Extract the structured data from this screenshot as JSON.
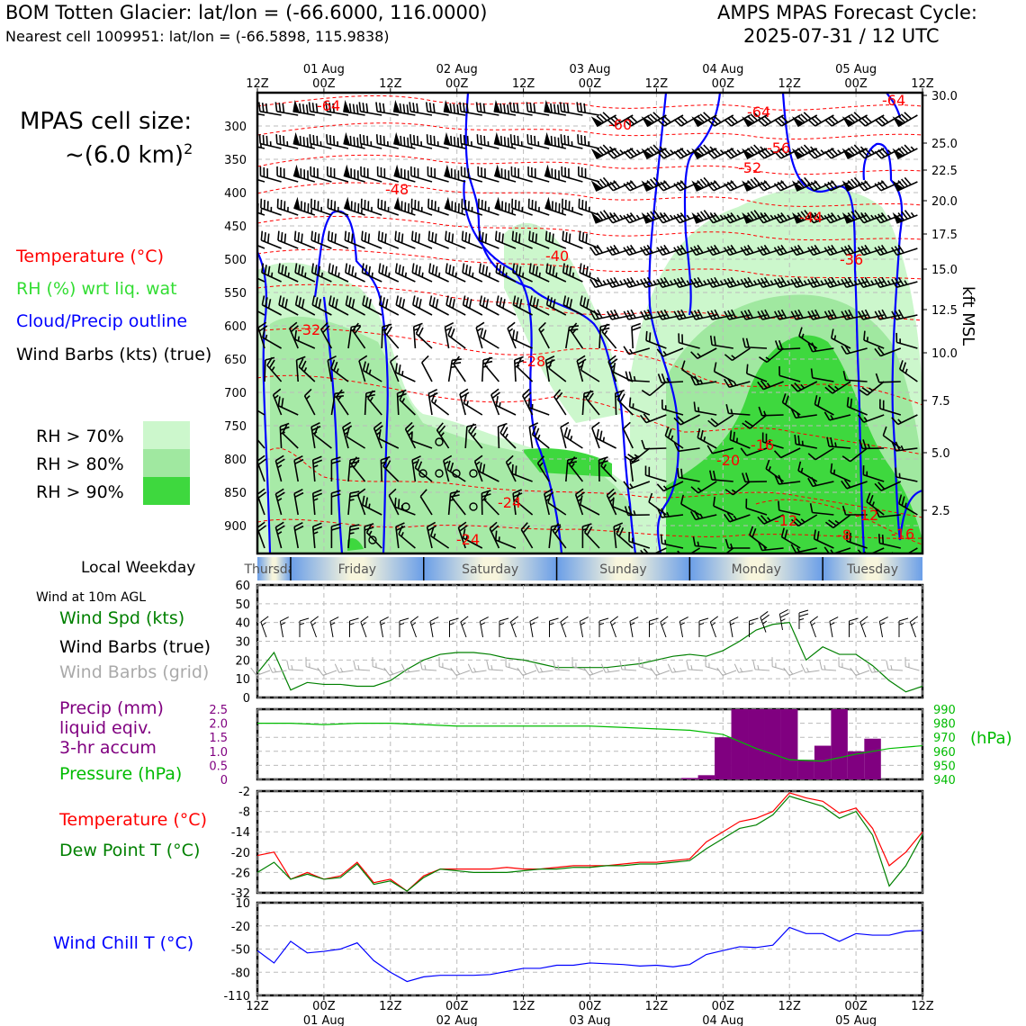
{
  "header": {
    "title_left": "BOM Totten Glacier: lat/lon = (-66.6000, 116.0000)",
    "subtitle_left": "Nearest cell 1009951: lat/lon = (-66.5898, 115.9838)",
    "title_right_1": "AMPS MPAS Forecast Cycle:",
    "title_right_2": "2025-07-31 / 12 UTC"
  },
  "left_panel": {
    "cell_size_line1": "MPAS cell size:",
    "cell_size_line2": "~(6.0 km)",
    "cell_size_sup": "2",
    "legend_temp": "Temperature (°C)",
    "legend_rh": "RH (%) wrt liq. wat",
    "legend_cloud": "Cloud/Precip outline",
    "legend_wind": "Wind Barbs (kts) (true)",
    "rh_70": "RH > 70%",
    "rh_80": "RH > 80%",
    "rh_90": "RH > 90%",
    "weekday_label": "Local Weekday",
    "wind10_title": "Wind at 10m AGL",
    "wind_spd": "Wind Spd (kts)",
    "wind_barbs_true": "Wind Barbs (true)",
    "wind_barbs_grid": "Wind Barbs (grid)",
    "precip_1": "Precip (mm)",
    "precip_2": "liquid eqiv.",
    "precip_3": "3-hr accum",
    "pressure": "Pressure (hPa)",
    "temp": "Temperature (°C)",
    "dewpt": "Dew Point T (°C)",
    "windchill": "Wind Chill T (°C)"
  },
  "colors": {
    "rh70": "#ccf7cc",
    "rh80": "#a0e8a0",
    "rh90": "#3ed83e",
    "temp": "#ff0000",
    "dew": "#008000",
    "cloud": "#0000ff",
    "precip": "#800080",
    "pressure": "#00bb00",
    "grid_barb": "#aaaaaa",
    "wind_spd": "#008000",
    "windchill": "#0000ff"
  },
  "time_axis": {
    "ticks": [
      "12Z",
      "00Z",
      "12Z",
      "00Z",
      "12Z",
      "00Z",
      "12Z",
      "00Z",
      "12Z",
      "00Z",
      "12Z"
    ],
    "dates": [
      "01 Aug",
      "02 Aug",
      "03 Aug",
      "04 Aug",
      "05 Aug"
    ]
  },
  "weekdays": [
    "Thursday",
    "Friday",
    "Saturday",
    "Sunday",
    "Monday",
    "Tuesday"
  ],
  "chart_data": [
    {
      "type": "heatmap",
      "name": "time-height cross section",
      "y_left_ticks": [
        "300",
        "350",
        "400",
        "450",
        "500",
        "550",
        "600",
        "650",
        "700",
        "750",
        "800",
        "850",
        "900"
      ],
      "y_right_label": "kft MSL",
      "y_right_ticks": [
        "30.0",
        "25.0",
        "22.5",
        "20.0",
        "17.5",
        "15.0",
        "12.5",
        "10.0",
        "7.5",
        "5.0",
        "2.5"
      ],
      "temp_contour_labels": [
        "-64",
        "-60",
        "-64",
        "-64",
        "-56",
        "-52",
        "-48",
        "-44",
        "-40",
        "-36",
        "-32",
        "-28",
        "-24",
        "-24",
        "-20",
        "-16",
        "-12",
        "-8",
        "-12",
        "-16"
      ]
    },
    {
      "type": "line",
      "name": "wind speed 10m",
      "yticks": [
        "0",
        "10",
        "20",
        "30",
        "40",
        "50",
        "60"
      ],
      "ylim": [
        0,
        60
      ],
      "x": [
        0,
        3,
        6,
        9,
        12,
        15,
        18,
        21,
        24,
        27,
        30,
        33,
        36,
        39,
        42,
        45,
        48,
        51,
        54,
        57,
        60,
        63,
        66,
        69,
        72,
        75,
        78,
        81,
        84,
        87,
        90,
        93,
        96,
        99,
        102,
        105,
        108,
        111,
        114,
        117,
        120
      ],
      "values": [
        13,
        24,
        4,
        8,
        7,
        7,
        6,
        6,
        9,
        15,
        20,
        23,
        24,
        24,
        23,
        21,
        20,
        18,
        16,
        16,
        16,
        16,
        17,
        18,
        20,
        22,
        23,
        22,
        25,
        30,
        36,
        39,
        40,
        20,
        27,
        23,
        23,
        17,
        9,
        3,
        6
      ]
    },
    {
      "type": "bar",
      "name": "precip and pressure",
      "precip_yticks": [
        "0",
        "0.5",
        "1.0",
        "1.5",
        "2.0",
        "2.5"
      ],
      "pressure_yticks": [
        "940",
        "950",
        "960",
        "970",
        "980",
        "990"
      ],
      "precip_ylim": [
        0,
        2.5
      ],
      "pressure_ylim": [
        940,
        990
      ],
      "precip_x": [
        78,
        81,
        84,
        87,
        90,
        93,
        96,
        99,
        102,
        105,
        108,
        111,
        114
      ],
      "precip_values": [
        0.05,
        0.15,
        1.5,
        2.5,
        2.5,
        2.5,
        2.5,
        0.7,
        1.2,
        2.5,
        1.0,
        1.45,
        0
      ],
      "pressure_x": [
        0,
        6,
        12,
        18,
        24,
        30,
        36,
        42,
        48,
        54,
        60,
        66,
        72,
        78,
        84,
        90,
        96,
        102,
        108,
        114,
        120
      ],
      "pressure_values": [
        980,
        980,
        979,
        980,
        980,
        979,
        978,
        978,
        978,
        978,
        978,
        977,
        976,
        975,
        972,
        962,
        954,
        953,
        958,
        962,
        964
      ]
    },
    {
      "type": "line",
      "name": "temperature and dew point",
      "yticks": [
        "-2",
        "-8",
        "-14",
        "-20",
        "-26",
        "-32"
      ],
      "ylim": [
        -32,
        -2
      ],
      "x": [
        0,
        3,
        6,
        9,
        12,
        15,
        18,
        21,
        24,
        27,
        30,
        33,
        36,
        39,
        42,
        45,
        48,
        51,
        54,
        57,
        60,
        63,
        66,
        69,
        72,
        75,
        78,
        81,
        84,
        87,
        90,
        93,
        96,
        99,
        102,
        105,
        108,
        111,
        114,
        117,
        120
      ],
      "temperature": [
        -21,
        -20,
        -28,
        -26,
        -28,
        -27,
        -23,
        -29,
        -28,
        -31.5,
        -27,
        -25,
        -25,
        -25,
        -25,
        -24.5,
        -25,
        -25,
        -24.5,
        -24,
        -24,
        -24,
        -23.5,
        -23,
        -23,
        -22.5,
        -22,
        -17,
        -14,
        -11,
        -10,
        -8,
        -2.5,
        -4,
        -5,
        -8.5,
        -7,
        -13,
        -24,
        -20,
        -14
      ],
      "dewpoint": [
        -26,
        -23,
        -28,
        -26.5,
        -28,
        -27.5,
        -23.5,
        -29.5,
        -28.5,
        -31.5,
        -27.5,
        -25,
        -25.5,
        -26,
        -26,
        -26,
        -25.5,
        -25,
        -25,
        -24.5,
        -24.5,
        -24,
        -24,
        -23.5,
        -23.5,
        -23,
        -22.5,
        -19,
        -16,
        -13,
        -12,
        -9,
        -3.5,
        -5,
        -6.5,
        -10,
        -8,
        -15,
        -30,
        -24,
        -15
      ]
    },
    {
      "type": "line",
      "name": "wind chill",
      "yticks": [
        "10",
        "-20",
        "-50",
        "-80",
        "-110"
      ],
      "ylim": [
        -110,
        10
      ],
      "x": [
        0,
        3,
        6,
        9,
        12,
        15,
        18,
        21,
        24,
        27,
        30,
        33,
        36,
        39,
        42,
        45,
        48,
        51,
        54,
        57,
        60,
        63,
        66,
        69,
        72,
        75,
        78,
        81,
        84,
        87,
        90,
        93,
        96,
        99,
        102,
        105,
        108,
        111,
        114,
        117,
        120
      ],
      "values": [
        -52,
        -68,
        -40,
        -55,
        -53,
        -50,
        -42,
        -65,
        -80,
        -92,
        -86,
        -84,
        -84,
        -84,
        -83,
        -79,
        -75,
        -75,
        -71,
        -71,
        -68,
        -69,
        -70,
        -72,
        -71,
        -73,
        -70,
        -57,
        -52,
        -47,
        -48,
        -45,
        -22,
        -30,
        -30,
        -40,
        -30,
        -32,
        -32,
        -27,
        -26
      ]
    }
  ]
}
